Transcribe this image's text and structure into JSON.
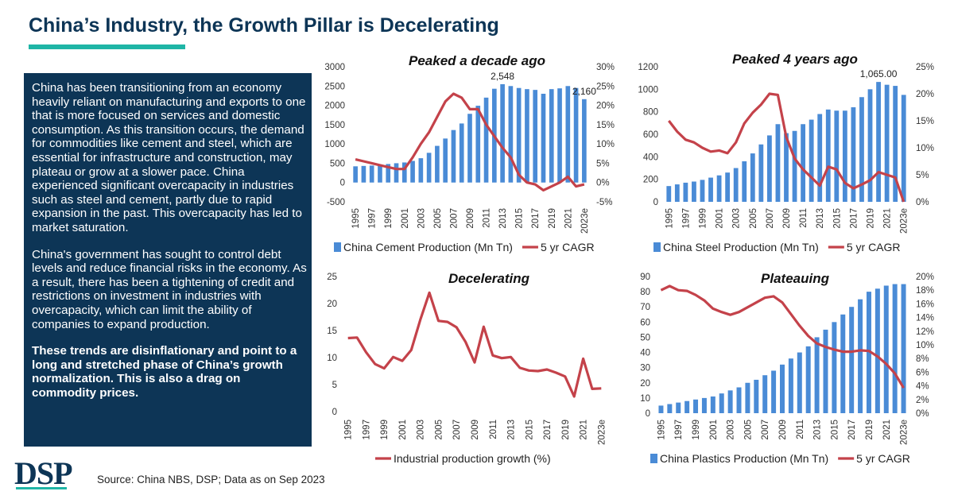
{
  "page": {
    "title": "China’s Industry, the Growth Pillar is Decelerating",
    "paragraphs": [
      "China has been transitioning from an economy heavily reliant on manufacturing and exports to one that is more focused on services and domestic consumption. As this transition occurs, the demand for commodities like cement and steel, which are essential for infrastructure and construction, may plateau or grow at a slower pace. China experienced significant overcapacity in industries such as steel and cement, partly due to rapid expansion in the past. This overcapacity has led to market saturation.",
      "China's government has sought to control debt levels and reduce financial risks in the economy. As a result, there has been a tightening of credit and restrictions on investment in industries with overcapacity, which can limit the ability of companies to expand production."
    ],
    "conclusion": "These trends are disinflationary and point to a long and stretched phase of China’s growth normalization. This is also a drag on commodity prices.",
    "logo_text": "DSP",
    "source": "Source: China NBS, DSP; Data as on Sep 2023",
    "colors": {
      "navy": "#0d3556",
      "teal": "#1fb5a6",
      "bar": "#4a8bd6",
      "line": "#c4424a"
    }
  },
  "chart_data": [
    {
      "type": "bar+line",
      "title": "Peaked a decade ago",
      "categories": [
        "1995",
        "1996",
        "1997",
        "1998",
        "1999",
        "2000",
        "2001",
        "2002",
        "2003",
        "2004",
        "2005",
        "2006",
        "2007",
        "2008",
        "2009",
        "2010",
        "2011",
        "2012",
        "2013",
        "2014",
        "2015",
        "2016",
        "2017",
        "2018",
        "2019",
        "2020",
        "2021",
        "2022",
        "2023e"
      ],
      "xtick_labels": [
        "1995",
        "1997",
        "1999",
        "2001",
        "2003",
        "2005",
        "2007",
        "2009",
        "2011",
        "2013",
        "2015",
        "2017",
        "2019",
        "2021",
        "2023e"
      ],
      "series": [
        {
          "name": "China Cement Production (Mn Tn)",
          "kind": "bar",
          "axis": "left",
          "values": [
            420,
            430,
            440,
            460,
            480,
            500,
            520,
            560,
            630,
            770,
            950,
            1140,
            1360,
            1530,
            1780,
            1990,
            2200,
            2430,
            2548,
            2500,
            2450,
            2420,
            2400,
            2300,
            2420,
            2440,
            2500,
            2450,
            2160
          ]
        },
        {
          "name": "5 yr CAGR",
          "kind": "line",
          "axis": "right",
          "values": [
            6,
            5.5,
            5,
            4.5,
            4,
            3.5,
            3.5,
            6.5,
            10,
            13,
            17,
            21,
            23,
            22,
            19,
            19,
            15,
            12,
            9,
            6.5,
            2,
            0,
            -0.5,
            -2,
            -1,
            0,
            1.5,
            -1,
            -0.5
          ]
        }
      ],
      "ylim_left": [
        -500,
        3000
      ],
      "yticks_left": [
        -500,
        0,
        500,
        1000,
        1500,
        2000,
        2500,
        3000
      ],
      "ylim_right": [
        -5,
        30
      ],
      "yticks_right": [
        "-5%",
        "0%",
        "5%",
        "10%",
        "15%",
        "20%",
        "25%",
        "30%"
      ],
      "annotations": [
        {
          "label": "2,548",
          "index": 18
        },
        {
          "label": "2,160",
          "index": 28
        }
      ],
      "legend": [
        "China Cement Production (Mn Tn)",
        "5 yr CAGR"
      ],
      "legend_position": "bottom"
    },
    {
      "type": "bar+line",
      "title": "Peaked 4 years ago",
      "categories": [
        "1995",
        "1996",
        "1997",
        "1998",
        "1999",
        "2000",
        "2001",
        "2002",
        "2003",
        "2004",
        "2005",
        "2006",
        "2007",
        "2008",
        "2009",
        "2010",
        "2011",
        "2012",
        "2013",
        "2014",
        "2015",
        "2016",
        "2017",
        "2018",
        "2019",
        "2020",
        "2021",
        "2022",
        "2023e"
      ],
      "xtick_labels": [
        "1995",
        "1997",
        "1999",
        "2001",
        "2003",
        "2005",
        "2007",
        "2009",
        "2011",
        "2013",
        "2015",
        "2017",
        "2019",
        "2021",
        "2023e"
      ],
      "series": [
        {
          "name": "China Steel Production (Mn Tn)",
          "kind": "bar",
          "axis": "left",
          "values": [
            140,
            155,
            170,
            180,
            195,
            215,
            235,
            260,
            300,
            360,
            430,
            510,
            590,
            690,
            610,
            630,
            690,
            730,
            780,
            820,
            810,
            810,
            840,
            930,
            1000,
            1065,
            1040,
            1030,
            950
          ]
        },
        {
          "name": "5 yr CAGR",
          "kind": "line",
          "axis": "right",
          "values": [
            15,
            13,
            11.5,
            11,
            10,
            9.3,
            9.5,
            9,
            11,
            14.5,
            16.5,
            18,
            20,
            19.8,
            12,
            8,
            6,
            4.5,
            3,
            6.5,
            6,
            3.5,
            2.5,
            3.2,
            4,
            5.5,
            5,
            4.5,
            0
          ]
        }
      ],
      "ylim_left": [
        0,
        1200
      ],
      "yticks_left": [
        0,
        200,
        400,
        600,
        800,
        1000,
        1200
      ],
      "ylim_right": [
        0,
        25
      ],
      "yticks_right": [
        "0%",
        "5%",
        "10%",
        "15%",
        "20%",
        "25%"
      ],
      "annotations": [
        {
          "label": "1,065.00",
          "index": 25
        }
      ],
      "legend": [
        "China Steel Production (Mn Tn)",
        "5 yr CAGR"
      ],
      "legend_position": "bottom"
    },
    {
      "type": "line",
      "title": "Decelerating",
      "categories": [
        "1995",
        "1996",
        "1997",
        "1998",
        "1999",
        "2000",
        "2001",
        "2002",
        "2003",
        "2004",
        "2005",
        "2006",
        "2007",
        "2008",
        "2009",
        "2010",
        "2011",
        "2012",
        "2013",
        "2014",
        "2015",
        "2016",
        "2017",
        "2018",
        "2019",
        "2020",
        "2021",
        "2022",
        "2023e"
      ],
      "xtick_labels": [
        "1995",
        "1997",
        "1999",
        "2001",
        "2003",
        "2005",
        "2007",
        "2009",
        "2011",
        "2013",
        "2015",
        "2017",
        "2019",
        "2021",
        "2023e"
      ],
      "series": [
        {
          "name": "Industrial production growth (%)",
          "kind": "line",
          "axis": "left",
          "values": [
            13.6,
            13.7,
            11,
            8.8,
            8,
            10.1,
            9.4,
            11.4,
            17,
            22,
            16.8,
            16.6,
            15.6,
            12.9,
            9.1,
            15.7,
            10.4,
            9.9,
            10.1,
            8.1,
            7.6,
            7.5,
            7.8,
            7.2,
            6.5,
            2.8,
            9.8,
            4.2,
            4.3
          ]
        }
      ],
      "ylim": [
        0,
        25
      ],
      "yticks": [
        0,
        5,
        10,
        15,
        20,
        25
      ],
      "legend": [
        "Industrial production growth (%)"
      ],
      "legend_position": "bottom"
    },
    {
      "type": "bar+line",
      "title": "Plateauing",
      "categories": [
        "1995",
        "1996",
        "1997",
        "1998",
        "1999",
        "2000",
        "2001",
        "2002",
        "2003",
        "2004",
        "2005",
        "2006",
        "2007",
        "2008",
        "2009",
        "2010",
        "2011",
        "2012",
        "2013",
        "2014",
        "2015",
        "2016",
        "2017",
        "2018",
        "2019",
        "2020",
        "2021",
        "2022",
        "2023e"
      ],
      "xtick_labels": [
        "1995",
        "1997",
        "1999",
        "2001",
        "2003",
        "2005",
        "2007",
        "2009",
        "2011",
        "2013",
        "2015",
        "2017",
        "2019",
        "2021",
        "2023e"
      ],
      "series": [
        {
          "name": "China Plastics Production (Mn Tn)",
          "kind": "bar",
          "axis": "left",
          "values": [
            5,
            6,
            7,
            8,
            9,
            10,
            11,
            13,
            15,
            17,
            20,
            22,
            25,
            28,
            32,
            36,
            40,
            44,
            50,
            55,
            60,
            65,
            70,
            75,
            80,
            82,
            84,
            85,
            85
          ]
        },
        {
          "name": "5 yr CAGR",
          "kind": "line",
          "axis": "right",
          "values": [
            18,
            18.6,
            18,
            17.9,
            17.3,
            16.5,
            15.3,
            14.8,
            14.4,
            14.8,
            15.5,
            16.2,
            16.9,
            17.1,
            16.2,
            14.5,
            12.8,
            11.3,
            10.2,
            9.7,
            9.3,
            9,
            9,
            9.2,
            9.1,
            8.3,
            7.2,
            5.8,
            3.7
          ]
        }
      ],
      "ylim_left": [
        0,
        90
      ],
      "yticks_left": [
        0,
        10,
        20,
        30,
        40,
        50,
        60,
        70,
        80,
        90
      ],
      "ylim_right": [
        0,
        20
      ],
      "yticks_right": [
        "0%",
        "2%",
        "4%",
        "6%",
        "8%",
        "10%",
        "12%",
        "14%",
        "16%",
        "18%",
        "20%"
      ],
      "legend": [
        "China Plastics Production (Mn Tn)",
        "5 yr CAGR"
      ],
      "legend_position": "bottom"
    }
  ]
}
